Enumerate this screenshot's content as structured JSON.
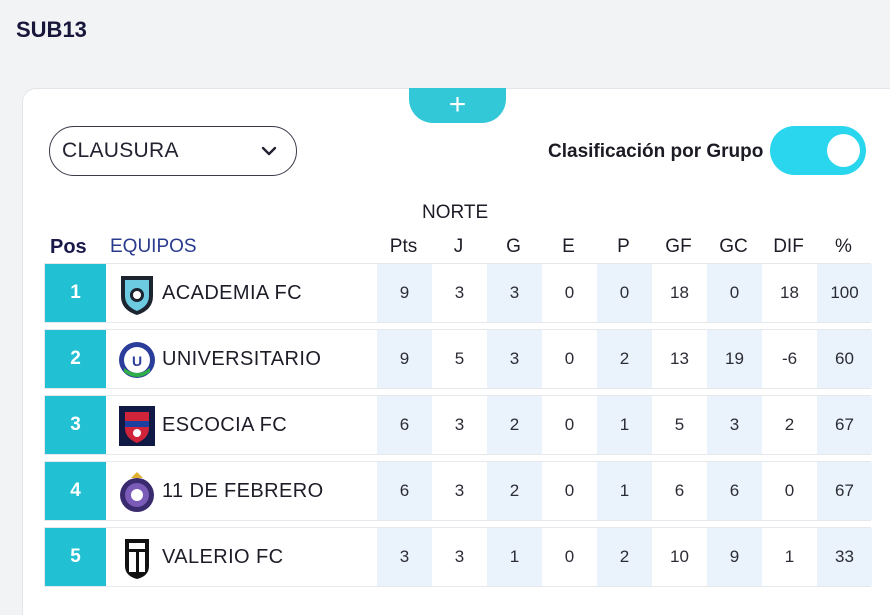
{
  "header": {
    "title": "SUB13"
  },
  "add_button": {
    "label": "+"
  },
  "filter": {
    "selected": "CLAUSURA"
  },
  "toggle": {
    "label": "Clasificación por Grupo",
    "on": true,
    "color": "#29d6ee"
  },
  "group": {
    "name": "NORTE"
  },
  "table": {
    "columns": {
      "pos": "Pos",
      "team": "EQUIPOS",
      "pts": "Pts",
      "j": "J",
      "g": "G",
      "e": "E",
      "p": "P",
      "gf": "GF",
      "gc": "GC",
      "dif": "DIF",
      "pct": "%"
    },
    "rows": [
      {
        "pos": "1",
        "team": "ACADEMIA FC",
        "logo": "academia-fc-crest",
        "pts": "9",
        "j": "3",
        "g": "3",
        "e": "0",
        "p": "0",
        "gf": "18",
        "gc": "0",
        "dif": "18",
        "pct": "100"
      },
      {
        "pos": "2",
        "team": "UNIVERSITARIO",
        "logo": "universitario-crest",
        "pts": "9",
        "j": "5",
        "g": "3",
        "e": "0",
        "p": "2",
        "gf": "13",
        "gc": "19",
        "dif": "-6",
        "pct": "60"
      },
      {
        "pos": "3",
        "team": "ESCOCIA FC",
        "logo": "escocia-fc-crest",
        "pts": "6",
        "j": "3",
        "g": "2",
        "e": "0",
        "p": "1",
        "gf": "5",
        "gc": "3",
        "dif": "2",
        "pct": "67"
      },
      {
        "pos": "4",
        "team": "11 DE FEBRERO",
        "logo": "11-de-febrero-crest",
        "pts": "6",
        "j": "3",
        "g": "2",
        "e": "0",
        "p": "1",
        "gf": "6",
        "gc": "6",
        "dif": "0",
        "pct": "67"
      },
      {
        "pos": "5",
        "team": "VALERIO FC",
        "logo": "valerio-fc-crest",
        "pts": "3",
        "j": "3",
        "g": "1",
        "e": "0",
        "p": "2",
        "gf": "10",
        "gc": "9",
        "dif": "1",
        "pct": "33"
      }
    ]
  },
  "colors": {
    "accent": "#21c0d2",
    "title": "#18163a",
    "equipos_header": "#2a3b8f",
    "stat_shade": "#eaf3fb"
  }
}
